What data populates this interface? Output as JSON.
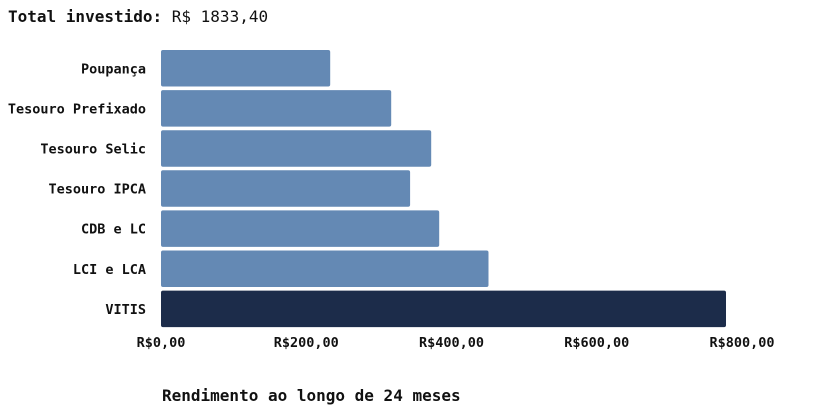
{
  "header": {
    "total_label": "Total investido:",
    "total_value": "R$ 1833,40"
  },
  "chart_data": {
    "type": "bar",
    "orientation": "horizontal",
    "categories": [
      "Poupança",
      "Tesouro Prefixado",
      "Tesouro Selic",
      "Tesouro IPCA",
      "CDB e LC",
      "LCI e LCA",
      "VITIS"
    ],
    "values": [
      233,
      317,
      372,
      343,
      383,
      451,
      778
    ],
    "xlabel": "Rendimento ao longo de 24 meses",
    "xlim": [
      0,
      800
    ],
    "xticks": [
      0,
      200,
      400,
      600,
      800
    ],
    "xtick_labels": [
      "R$0,00",
      "R$200,00",
      "R$400,00",
      "R$600,00",
      "R$800,00"
    ],
    "colors": {
      "default": "#6489b4",
      "highlight": "#1c2c4a",
      "highlight_category": "VITIS"
    },
    "grid": false,
    "legend": false
  }
}
